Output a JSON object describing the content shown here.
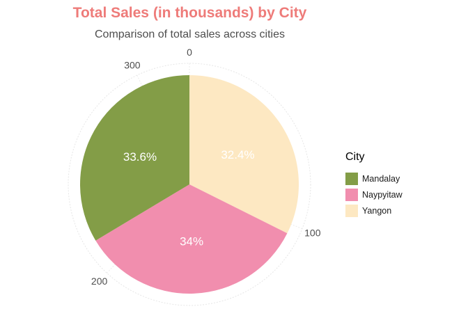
{
  "title": "Total Sales (in thousands) by City",
  "subtitle": "Comparison of total sales across cities",
  "colors": {
    "title": "#ee7b79",
    "Mandalay": "#839d47",
    "Naypyitaw": "#f18eae",
    "Yangon": "#fde8c2"
  },
  "chart_data": {
    "type": "pie",
    "title": "Total Sales (in thousands) by City",
    "subtitle": "Comparison of total sales across cities",
    "legend_title": "City",
    "legend_position": "right",
    "total": 322.97,
    "categories": [
      "Yangon",
      "Naypyitaw",
      "Mandalay"
    ],
    "values": [
      104.6,
      109.9,
      108.5
    ],
    "data_labels": [
      "32.4%",
      "34%",
      "33.6%"
    ],
    "theta_axis_ticks": [
      "0",
      "100",
      "200",
      "300"
    ],
    "theta_axis_values": [
      0,
      100,
      200,
      300
    ],
    "legend": [
      "Mandalay",
      "Naypyitaw",
      "Yangon"
    ]
  }
}
